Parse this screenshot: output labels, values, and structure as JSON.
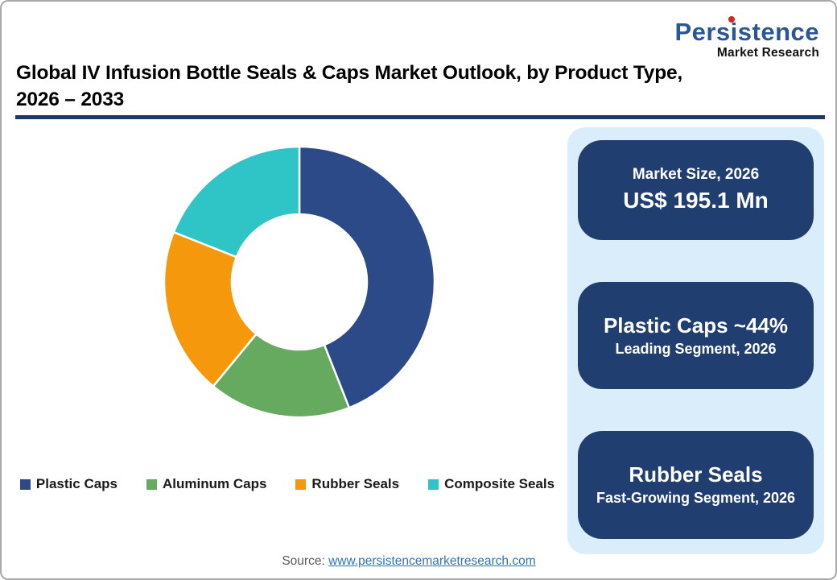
{
  "logo": {
    "name": "Persistence",
    "subtitle": "Market Research"
  },
  "header": {
    "title_line1": "Global IV Infusion Bottle Seals & Caps Market Outlook, by Product Type,",
    "title_line2": "2026 – 2033"
  },
  "chart_data": {
    "type": "pie",
    "subtype": "donut",
    "title": "Global IV Infusion Bottle Seals & Caps Market Outlook, by Product Type, 2026 – 2033",
    "categories": [
      "Plastic Caps",
      "Aluminum Caps",
      "Rubber Seals",
      "Composite Seals"
    ],
    "values": [
      44,
      17,
      20,
      19
    ],
    "unit": "percent-of-market",
    "colors": [
      "#2B4A87",
      "#65AA5F",
      "#F5980B",
      "#2FC4C6"
    ],
    "start_angle_deg": 0,
    "direction": "clockwise",
    "inner_radius_ratio": 0.5,
    "legend_position": "bottom"
  },
  "info_panel": {
    "panel_bg": "#D9EEFA",
    "card_bg": "#213E70",
    "card_text_color": "#FFFFFF",
    "cards": [
      {
        "line1": "Market Size, 2026",
        "line2": "US$ 195.1 Mn"
      },
      {
        "line1": "Plastic Caps ~44%",
        "line2": "Leading Segment, 2026"
      },
      {
        "line1": "Rubber Seals",
        "line2": "Fast-Growing Segment, 2026"
      }
    ]
  },
  "footer": {
    "source_label": "Source:",
    "source_link": "www.persistencemarketresearch.com"
  },
  "theme": {
    "rule_color": "#1F3864",
    "logo_blue": "#2B5597",
    "logo_red": "#D9261C",
    "link_color": "#2E75B6",
    "source_label_color": "#595959"
  }
}
